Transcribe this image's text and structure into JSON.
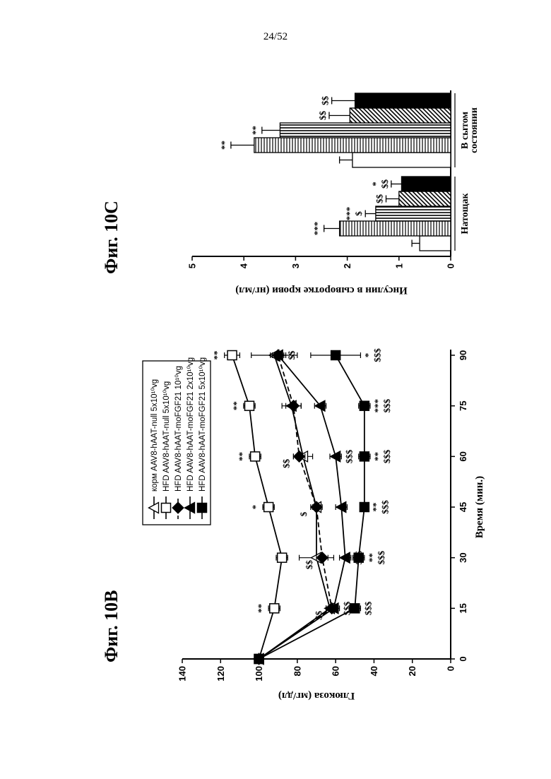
{
  "page_number": "24/52",
  "chart_data": [
    {
      "id": "fig10B",
      "type": "line",
      "title": "Фиг. 10B",
      "xlabel": "Время (мин.)",
      "ylabel": "Глюкоза (мг/дл)",
      "x": [
        0,
        15,
        30,
        45,
        60,
        75,
        90
      ],
      "xticks": [
        "0",
        "15",
        "30",
        "45",
        "60",
        "75",
        "90"
      ],
      "yticks": [
        "0",
        "20",
        "40",
        "60",
        "80",
        "100",
        "120",
        "140"
      ],
      "xlim": [
        0,
        90
      ],
      "ylim": [
        0,
        140
      ],
      "legend_position": "top-left",
      "series": [
        {
          "name": "корм AAV8-hAAT-null 5x10¹⁰vg",
          "marker": "open-triangle",
          "fill": "#ffffff",
          "dashed": false,
          "values": [
            100,
            63,
            70,
            70,
            77,
            83,
            92
          ],
          "errors": [
            0,
            2,
            9,
            2,
            5,
            5,
            12
          ],
          "sig": [
            "",
            "",
            "",
            "",
            "",
            "",
            ""
          ]
        },
        {
          "name": "HFD AAV8-hAAT-null 5x10¹⁰vg",
          "marker": "open-square",
          "fill": "#ffffff",
          "dashed": false,
          "values": [
            100,
            92,
            88,
            95,
            102,
            105,
            114
          ],
          "errors": [
            0,
            3,
            3,
            3,
            3,
            3,
            4
          ],
          "sig": [
            "",
            "**",
            "",
            "*",
            "**",
            "**",
            "**"
          ]
        },
        {
          "name": "HFD AAV8-hAAT-moFGF21 10¹⁰vg",
          "marker": "filled-diamond",
          "fill": "#000000",
          "dashed": true,
          "values": [
            100,
            62,
            67,
            70,
            79,
            82,
            90
          ],
          "errors": [
            0,
            3,
            3,
            3,
            3,
            4,
            4
          ],
          "sig": [
            "",
            "$$",
            "$$",
            "$",
            "$$",
            "",
            ""
          ]
        },
        {
          "name": "HFD AAV8-hAAT-moFGF21 2x10¹⁰vg",
          "marker": "filled-triangle",
          "fill": "#000000",
          "dashed": false,
          "values": [
            100,
            61,
            55,
            57,
            60,
            68,
            90
          ],
          "errors": [
            0,
            3,
            3,
            3,
            3,
            3,
            3
          ],
          "sig": [
            "",
            "$$$",
            "$$$",
            "",
            "$$$",
            "",
            "$$"
          ]
        },
        {
          "name": "HFD AAV8-hAAT-moFGF21 5x10¹⁰vg",
          "marker": "filled-square",
          "fill": "#000000",
          "dashed": false,
          "values": [
            100,
            50,
            48,
            45,
            45,
            45,
            60
          ],
          "errors": [
            0,
            3,
            3,
            2,
            3,
            3,
            13
          ],
          "sig": [
            "",
            "$$$",
            "**\n$$$",
            "**\n$$$",
            "**\n$$$",
            "***\n$$$",
            "*\n$$$"
          ]
        }
      ]
    },
    {
      "id": "fig10C",
      "type": "bar",
      "title": "Фиг. 10C",
      "ylabel": "Инсулин в сыворотке крови (нг/мл)",
      "yticks": [
        "0",
        "1",
        "2",
        "3",
        "4",
        "5"
      ],
      "ylim": [
        0,
        5
      ],
      "categories": [
        "Натощак",
        "В сытом состоянии"
      ],
      "series": [
        {
          "pattern": "white",
          "values": [
            0.6,
            1.9
          ],
          "errors": [
            0.15,
            0.25
          ],
          "sig": [
            "",
            ""
          ]
        },
        {
          "pattern": "hlines",
          "values": [
            2.15,
            3.8
          ],
          "errors": [
            0.3,
            0.45
          ],
          "sig": [
            "***",
            "**"
          ]
        },
        {
          "pattern": "vlines",
          "values": [
            1.45,
            3.3
          ],
          "errors": [
            0.2,
            0.35
          ],
          "sig": [
            "***\n$",
            "**"
          ]
        },
        {
          "pattern": "diagonal",
          "values": [
            1.0,
            1.95
          ],
          "errors": [
            0.25,
            0.4
          ],
          "sig": [
            "$$",
            "$$"
          ]
        },
        {
          "pattern": "black",
          "values": [
            0.95,
            1.85
          ],
          "errors": [
            0.2,
            0.45
          ],
          "sig": [
            "*\n$$",
            "$$"
          ]
        }
      ]
    }
  ]
}
